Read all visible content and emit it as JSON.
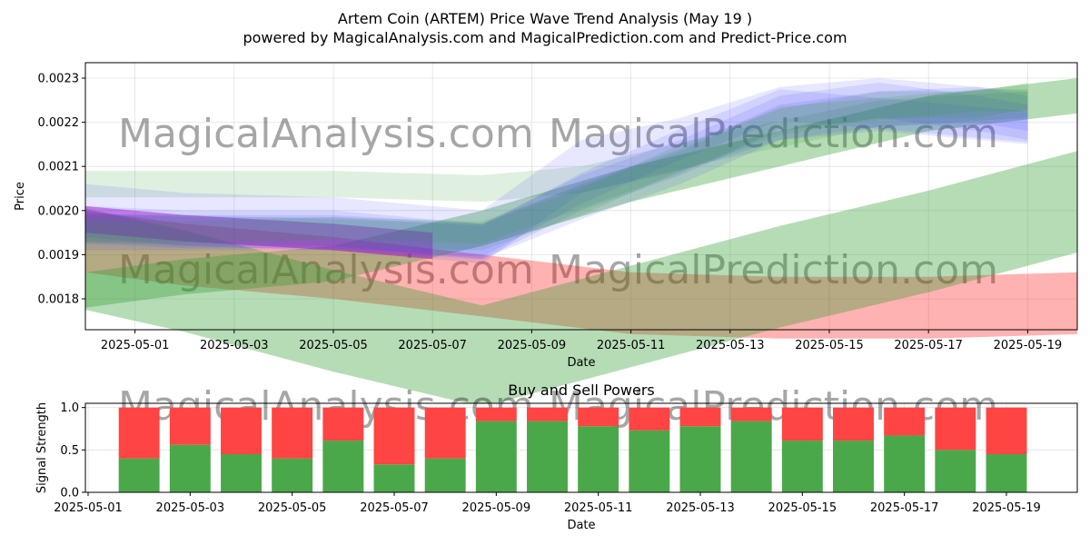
{
  "chart_data": [
    {
      "type": "area",
      "title": "Artem Coin (ARTEM) Price Wave Trend Analysis (May 19 )",
      "subtitle": "powered by MagicalAnalysis.com and MagicalPrediction.com and Predict-Price.com",
      "xlabel": "Date",
      "ylabel": "Price",
      "xlim": [
        "2025-04-30",
        "2025-05-20"
      ],
      "ylim": [
        0.00173,
        0.002335
      ],
      "x_ticks": [
        "2025-05-01",
        "2025-05-03",
        "2025-05-05",
        "2025-05-07",
        "2025-05-09",
        "2025-05-11",
        "2025-05-13",
        "2025-05-15",
        "2025-05-17",
        "2025-05-19"
      ],
      "y_ticks": [
        0.0018,
        0.0019,
        0.002,
        0.0021,
        0.0022,
        0.0023
      ],
      "y_tick_labels": [
        "0.0018",
        "0.0019",
        "0.0020",
        "0.0021",
        "0.0022",
        "0.0023"
      ],
      "grid": true,
      "watermarks": [
        "MagicalAnalysis.com",
        "MagicalPrediction.com"
      ],
      "colors": {
        "red": "#ff0000",
        "green": "#2e9a2e",
        "blue": "#3b3bff",
        "magenta": "#c000c0"
      },
      "bands": [
        {
          "color": "red",
          "opacity": 0.3,
          "points": [
            [
              "2025-04-30",
              0.00193
            ],
            [
              "2025-05-02",
              0.0019
            ],
            [
              "2025-05-05",
              0.00187
            ],
            [
              "2025-05-08",
              0.00183
            ],
            [
              "2025-05-11",
              0.00179
            ],
            [
              "2025-05-14",
              0.00178
            ],
            [
              "2025-05-17",
              0.00178
            ],
            [
              "2025-05-20",
              0.00179
            ]
          ],
          "width": 0.00014
        },
        {
          "color": "green",
          "opacity": 0.35,
          "points": [
            [
              "2025-04-30",
              0.00189
            ],
            [
              "2025-05-02",
              0.00184
            ],
            [
              "2025-05-05",
              0.00175
            ],
            [
              "2025-05-08",
              0.00167
            ],
            [
              "2025-05-11",
              0.00176
            ],
            [
              "2025-05-14",
              0.00185
            ],
            [
              "2025-05-17",
              0.00193
            ],
            [
              "2025-05-20",
              0.00202
            ]
          ],
          "width": 0.00023
        },
        {
          "color": "green",
          "opacity": 0.35,
          "points": [
            [
              "2025-04-30",
              0.00182
            ],
            [
              "2025-05-02",
              0.00185
            ],
            [
              "2025-05-05",
              0.00188
            ],
            [
              "2025-05-08",
              0.00196
            ],
            [
              "2025-05-11",
              0.00206
            ],
            [
              "2025-05-14",
              0.00214
            ],
            [
              "2025-05-17",
              0.00222
            ],
            [
              "2025-05-20",
              0.00226
            ]
          ],
          "width": 8e-05
        },
        {
          "color": "green",
          "opacity": 0.15,
          "points": [
            [
              "2025-04-30",
              0.00206
            ],
            [
              "2025-05-03",
              0.00206
            ],
            [
              "2025-05-05",
              0.00206
            ],
            [
              "2025-05-08",
              0.00205
            ],
            [
              "2025-05-10",
              0.00207
            ],
            [
              "2025-05-13",
              0.00215
            ],
            [
              "2025-05-16",
              0.00222
            ],
            [
              "2025-05-19",
              0.00224
            ]
          ],
          "width": 6e-05
        },
        {
          "color": "magenta",
          "opacity": 0.45,
          "points": [
            [
              "2025-04-30",
              0.00198
            ],
            [
              "2025-05-02",
              0.00196
            ],
            [
              "2025-05-05",
              0.00194
            ],
            [
              "2025-05-07",
              0.00192
            ]
          ],
          "width": 6e-05
        },
        {
          "color": "blue",
          "opacity": 0.12,
          "points": [
            [
              "2025-04-30",
              0.002
            ],
            [
              "2025-05-02",
              0.00198
            ],
            [
              "2025-05-05",
              0.00197
            ],
            [
              "2025-05-08",
              0.00194
            ],
            [
              "2025-05-10",
              0.0021
            ],
            [
              "2025-05-12",
              0.00215
            ],
            [
              "2025-05-14",
              0.00222
            ],
            [
              "2025-05-16",
              0.00224
            ],
            [
              "2025-05-18",
              0.00222
            ],
            [
              "2025-05-19",
              0.00221
            ]
          ],
          "width": 0.00012
        },
        {
          "color": "blue",
          "opacity": 0.12,
          "points": [
            [
              "2025-04-30",
              0.00197
            ],
            [
              "2025-05-02",
              0.00196
            ],
            [
              "2025-05-05",
              0.00196
            ],
            [
              "2025-05-08",
              0.00193
            ],
            [
              "2025-05-10",
              0.00204
            ],
            [
              "2025-05-12",
              0.00212
            ],
            [
              "2025-05-14",
              0.00222
            ],
            [
              "2025-05-16",
              0.00225
            ],
            [
              "2025-05-18",
              0.00222
            ],
            [
              "2025-05-19",
              0.0022
            ]
          ],
          "width": 8e-05
        },
        {
          "color": "blue",
          "opacity": 0.12,
          "points": [
            [
              "2025-04-30",
              0.00196
            ],
            [
              "2025-05-02",
              0.00195
            ],
            [
              "2025-05-05",
              0.00195
            ],
            [
              "2025-05-08",
              0.00193
            ],
            [
              "2025-05-10",
              0.00205
            ],
            [
              "2025-05-12",
              0.00215
            ],
            [
              "2025-05-14",
              0.00224
            ],
            [
              "2025-05-16",
              0.00222
            ],
            [
              "2025-05-18",
              0.0022
            ],
            [
              "2025-05-19",
              0.00219
            ]
          ],
          "width": 7e-05
        },
        {
          "color": "blue",
          "opacity": 0.12,
          "points": [
            [
              "2025-04-30",
              0.00195
            ],
            [
              "2025-05-02",
              0.00195
            ],
            [
              "2025-05-05",
              0.00195
            ],
            [
              "2025-05-08",
              0.00193
            ],
            [
              "2025-05-10",
              0.00202
            ],
            [
              "2025-05-12",
              0.0021
            ],
            [
              "2025-05-14",
              0.0022
            ],
            [
              "2025-05-16",
              0.00223
            ],
            [
              "2025-05-18",
              0.00224
            ],
            [
              "2025-05-19",
              0.00222
            ]
          ],
          "width": 8e-05
        },
        {
          "color": "green",
          "opacity": 0.15,
          "points": [
            [
              "2025-04-30",
              0.00195
            ],
            [
              "2025-05-02",
              0.00195
            ],
            [
              "2025-05-05",
              0.00196
            ],
            [
              "2025-05-08",
              0.00195
            ],
            [
              "2025-05-10",
              0.00203
            ],
            [
              "2025-05-12",
              0.00211
            ],
            [
              "2025-05-14",
              0.00221
            ],
            [
              "2025-05-16",
              0.00223
            ],
            [
              "2025-05-18",
              0.00225
            ],
            [
              "2025-05-19",
              0.00225
            ]
          ],
          "width": 5e-05
        },
        {
          "color": "green",
          "opacity": 0.15,
          "points": [
            [
              "2025-04-30",
              0.00196
            ],
            [
              "2025-05-02",
              0.00196
            ],
            [
              "2025-05-05",
              0.00195
            ],
            [
              "2025-05-08",
              0.00194
            ],
            [
              "2025-05-10",
              0.00202
            ],
            [
              "2025-05-12",
              0.00212
            ],
            [
              "2025-05-14",
              0.0022
            ],
            [
              "2025-05-16",
              0.00224
            ],
            [
              "2025-05-18",
              0.00224
            ],
            [
              "2025-05-19",
              0.00226
            ]
          ],
          "width": 6e-05
        }
      ]
    },
    {
      "type": "bar",
      "title": "Buy and Sell Powers",
      "xlabel": "Date",
      "ylabel": "Signal Strength",
      "xlim": [
        "2025-05-01",
        "2025-05-20"
      ],
      "ylim": [
        0,
        1.05
      ],
      "x_ticks": [
        "2025-05-01",
        "2025-05-03",
        "2025-05-05",
        "2025-05-07",
        "2025-05-09",
        "2025-05-11",
        "2025-05-13",
        "2025-05-15",
        "2025-05-17",
        "2025-05-19"
      ],
      "y_ticks": [
        0.0,
        0.5,
        1.0
      ],
      "y_tick_labels": [
        "0.0",
        "0.5",
        "1.0"
      ],
      "grid": true,
      "watermarks": [
        "MagicalAnalysis.com",
        "MagicalPrediction.com"
      ],
      "colors": {
        "buy": "#4aa84a",
        "sell": "#ff4444"
      },
      "categories": [
        "2025-05-02",
        "2025-05-03",
        "2025-05-04",
        "2025-05-05",
        "2025-05-06",
        "2025-05-07",
        "2025-05-08",
        "2025-05-09",
        "2025-05-10",
        "2025-05-11",
        "2025-05-12",
        "2025-05-13",
        "2025-05-14",
        "2025-05-15",
        "2025-05-16",
        "2025-05-17",
        "2025-05-18",
        "2025-05-19"
      ],
      "series": [
        {
          "values": [
            0.4,
            0.56,
            0.45,
            0.4,
            0.61,
            0.33,
            0.4,
            0.84,
            0.84,
            0.78,
            0.73,
            0.78,
            0.84,
            0.61,
            0.61,
            0.67,
            0.5,
            0.45
          ]
        },
        {
          "values": [
            0.6,
            0.44,
            0.55,
            0.6,
            0.39,
            0.67,
            0.6,
            0.16,
            0.16,
            0.22,
            0.27,
            0.22,
            0.16,
            0.39,
            0.39,
            0.33,
            0.5,
            0.55
          ]
        }
      ]
    }
  ]
}
